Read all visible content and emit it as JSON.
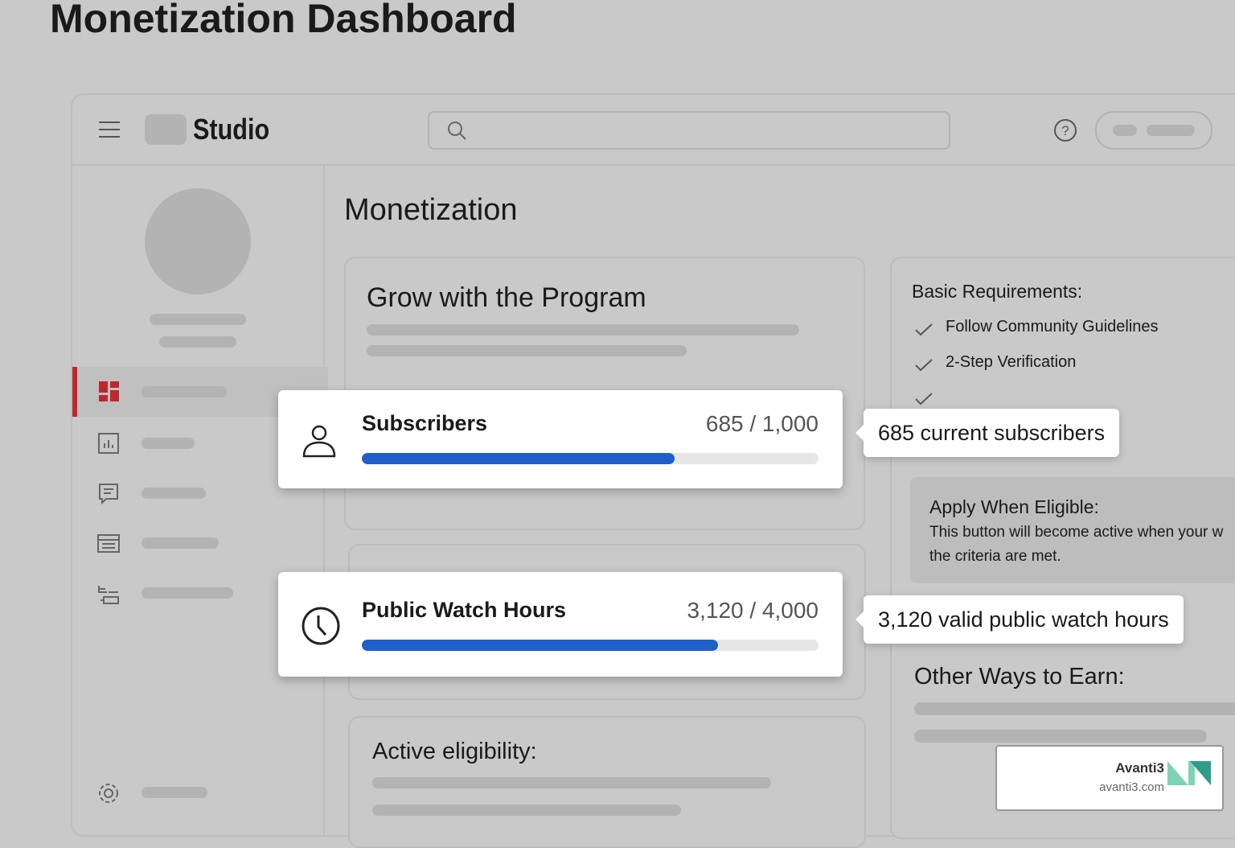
{
  "page_title": "Monetization Dashboard",
  "app": {
    "name": "Studio"
  },
  "section_title": "Monetization",
  "program_card": {
    "title": "Grow with the Program"
  },
  "metrics": [
    {
      "name": "Subscribers",
      "current": 685,
      "goal": 1000,
      "label": "685 / 1,000",
      "callout": "685 current subscribers"
    },
    {
      "name": "Public Watch Hours",
      "current": 3120,
      "goal": 4000,
      "label": "3,120 / 4,000",
      "callout": "3,120 valid public watch hours"
    }
  ],
  "eligibility_card": {
    "title": "Active eligibility:"
  },
  "requirements": {
    "title": "Basic Requirements:",
    "items": [
      "Follow Community Guidelines",
      "2-Step Verification"
    ]
  },
  "apply": {
    "title": "Apply When Eligible:",
    "lines": [
      "This button will become active when your w",
      "the criteria are met."
    ]
  },
  "other": {
    "title": "Other Ways to Earn:"
  },
  "watermark": {
    "brand": "Avanti3",
    "url": "avanti3.com"
  }
}
